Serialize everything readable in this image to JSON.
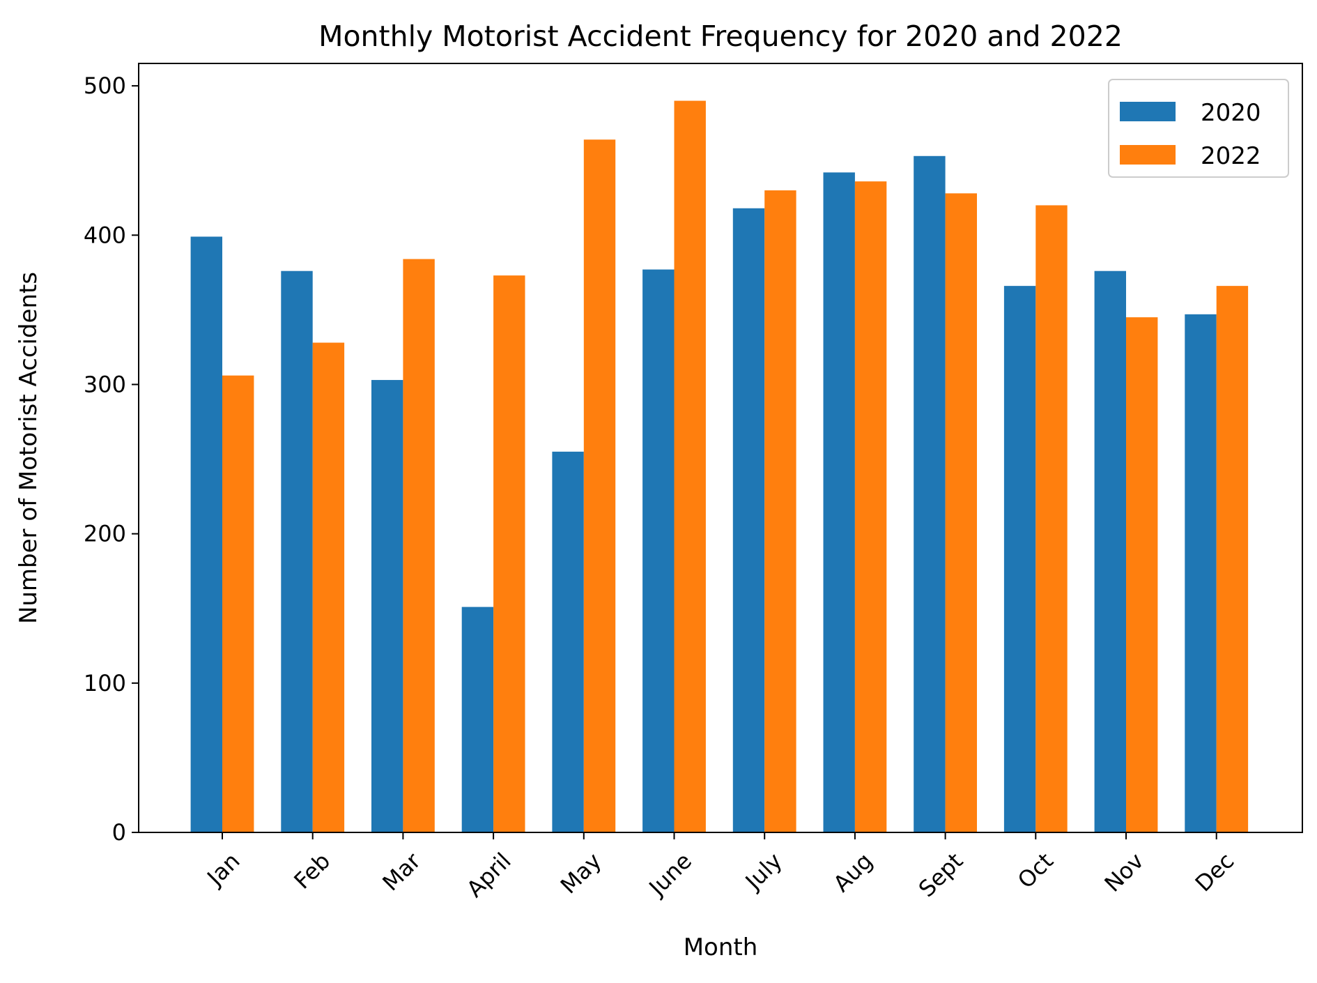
{
  "chart_data": {
    "type": "bar",
    "title": "Monthly Motorist Accident Frequency for 2020 and 2022",
    "xlabel": "Month",
    "ylabel": "Number of Motorist Accidents",
    "categories": [
      "Jan",
      "Feb",
      "Mar",
      "April",
      "May",
      "June",
      "July",
      "Aug",
      "Sept",
      "Oct",
      "Nov",
      "Dec"
    ],
    "series": [
      {
        "name": "2020",
        "color": "#1f77b4",
        "values": [
          399,
          376,
          303,
          151,
          255,
          377,
          418,
          442,
          453,
          366,
          376,
          347
        ]
      },
      {
        "name": "2022",
        "color": "#ff7f0e",
        "values": [
          306,
          328,
          384,
          373,
          464,
          490,
          430,
          436,
          428,
          420,
          345,
          366
        ]
      }
    ],
    "ylim": [
      0,
      515
    ],
    "yticks": [
      0,
      100,
      200,
      300,
      400,
      500
    ],
    "ytick_labels": [
      "0",
      "100",
      "200",
      "300",
      "400",
      "500"
    ],
    "grid": false,
    "legend_position": "top-right"
  }
}
